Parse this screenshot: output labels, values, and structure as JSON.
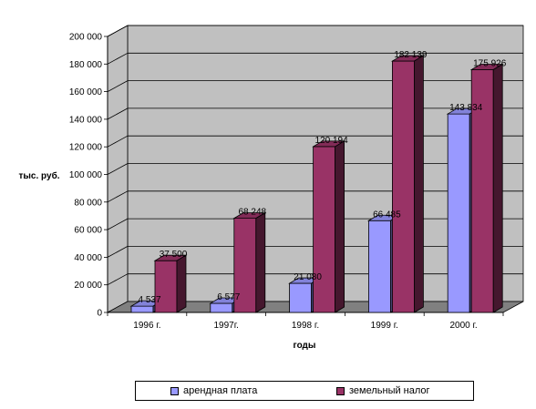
{
  "chart_data": {
    "type": "bar",
    "categories": [
      "1996 г.",
      "1997г.",
      "1998 г.",
      "1999 г.",
      "2000 г."
    ],
    "series": [
      {
        "name": "арендная плата",
        "values": [
          4537,
          6577,
          21080,
          66485,
          143834
        ],
        "labels": [
          "4 537",
          "6 577",
          "21 080",
          "66 485",
          "143 834"
        ],
        "color": "#9999ff"
      },
      {
        "name": "земельный налог",
        "values": [
          37500,
          68248,
          120194,
          182139,
          175926
        ],
        "labels": [
          "37 500",
          "68 248",
          "120 194",
          "182 139",
          "175 926"
        ],
        "color": "#993366"
      }
    ],
    "ylabel": "тыс. руб.",
    "xlabel": "годы",
    "ylim": [
      0,
      200000
    ],
    "yticks": [
      "0",
      "20 000",
      "40 000",
      "60 000",
      "80 000",
      "100 000",
      "120 000",
      "140 000",
      "160 000",
      "180 000",
      "200 000"
    ],
    "grid": true,
    "legend_position": "bottom",
    "wall_color": "#c0c0c0",
    "floor_color": "#808080"
  }
}
